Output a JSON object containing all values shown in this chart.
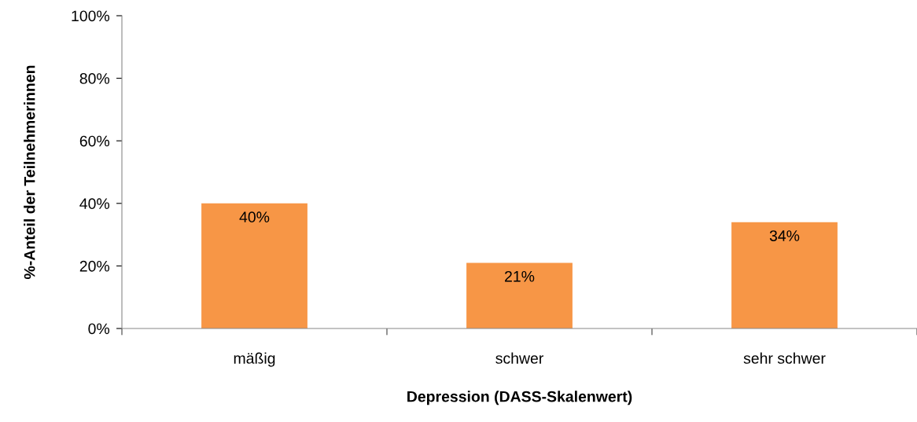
{
  "chart_data": {
    "type": "bar",
    "categories": [
      "mäßig",
      "schwer",
      "sehr schwer"
    ],
    "values": [
      40,
      21,
      34
    ],
    "value_labels": [
      "40%",
      "21%",
      "34%"
    ],
    "color": "#f79646",
    "xlabel": "Depression (DASS-Skalenwert)",
    "ylabel": "%-Anteil der Teilnehmerinnen",
    "ylim": [
      0,
      100
    ],
    "yticks": [
      {
        "value": 0,
        "label": "0%"
      },
      {
        "value": 20,
        "label": "20%"
      },
      {
        "value": 40,
        "label": "40%"
      },
      {
        "value": 60,
        "label": "60%"
      },
      {
        "value": 80,
        "label": "80%"
      },
      {
        "value": 100,
        "label": "100%"
      }
    ],
    "grid": false,
    "legend": false
  }
}
